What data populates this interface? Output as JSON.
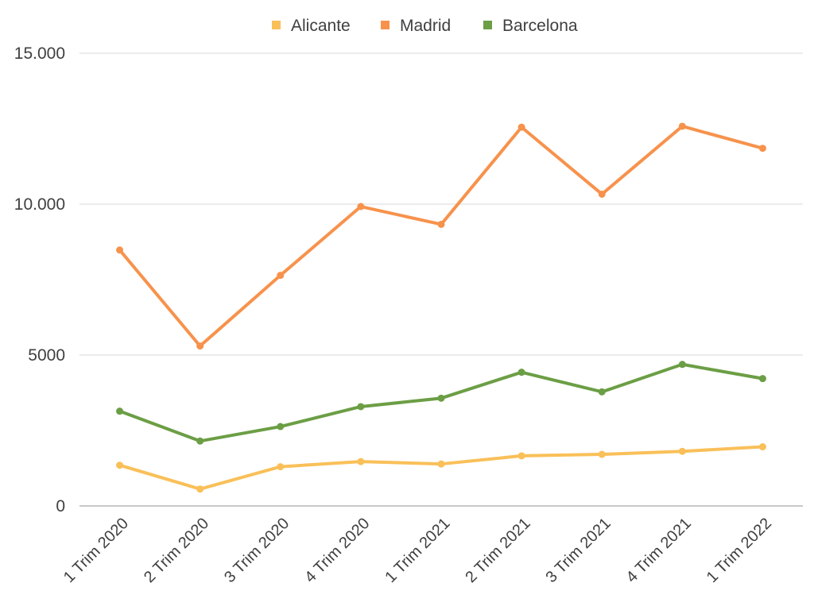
{
  "chart_data": {
    "type": "line",
    "categories": [
      "1 Trim 2020",
      "2 Trim 2020",
      "3 Trim 2020",
      "4 Trim 2020",
      "1 Trim 2021",
      "2 Trim 2021",
      "3 Trim 2021",
      "4 Trim 2021",
      "1 Trim 2022"
    ],
    "series": [
      {
        "name": "Alicante",
        "color": "#f9bf58",
        "values": [
          1350,
          560,
          1300,
          1470,
          1390,
          1660,
          1710,
          1810,
          1960
        ]
      },
      {
        "name": "Madrid",
        "color": "#f7924c",
        "values": [
          8480,
          5300,
          7640,
          9920,
          9330,
          12550,
          10330,
          12580,
          11850
        ]
      },
      {
        "name": "Barcelona",
        "color": "#6b9e45",
        "values": [
          3140,
          2150,
          2630,
          3290,
          3570,
          4430,
          3780,
          4690,
          4220
        ]
      }
    ],
    "y_ticks": [
      {
        "value": 0,
        "label": "0"
      },
      {
        "value": 5000,
        "label": "5000"
      },
      {
        "value": 10000,
        "label": "10.000"
      },
      {
        "value": 15000,
        "label": "15.000"
      }
    ],
    "ylim": [
      0,
      15000
    ],
    "grid": true,
    "legend_position": "top-center"
  }
}
